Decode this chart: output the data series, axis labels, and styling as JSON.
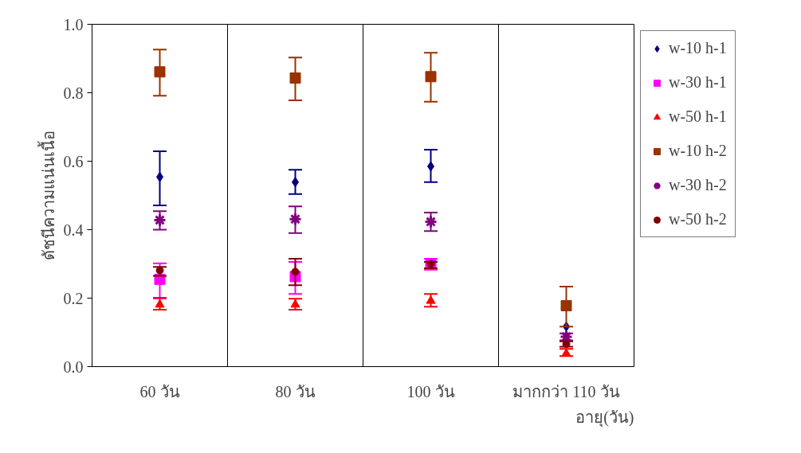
{
  "chart_data": {
    "type": "scatter",
    "ylabel": "ดัชนีความแน่นเนื้อ",
    "xlabel": "อายุ(วัน)",
    "categories": [
      "60 วัน",
      "80 วัน",
      "100 วัน",
      "มากกว่า 110 วัน"
    ],
    "ylim": [
      0,
      1
    ],
    "yticks": [
      {
        "value": 0,
        "label": "0.0"
      },
      {
        "value": 0.2,
        "label": "0.2"
      },
      {
        "value": 0.4,
        "label": "0.4"
      },
      {
        "value": 0.6,
        "label": "0.6"
      },
      {
        "value": 0.8,
        "label": "0.8"
      },
      {
        "value": 1,
        "label": "1.0"
      }
    ],
    "grid": "x",
    "legend": "right",
    "series": [
      {
        "name": "w-10 h-1",
        "color": "#000080",
        "marker": "diamond",
        "values": [
          0.554,
          0.539,
          0.585,
          0.117
        ],
        "errors": [
          [
            0.471,
            0.629
          ],
          [
            0.504,
            0.575
          ],
          [
            0.539,
            0.634
          ],
          null
        ]
      },
      {
        "name": "w-30 h-1",
        "color": "#ff00ff",
        "marker": "square",
        "values": [
          0.255,
          0.263,
          0.298,
          null
        ],
        "errors": [
          [
            0.199,
            0.302
          ],
          [
            0.212,
            0.306
          ],
          [
            0.283,
            0.315
          ],
          null
        ]
      },
      {
        "name": "w-50 h-1",
        "color": "#ff0000",
        "marker": "triangle",
        "values": [
          0.181,
          0.181,
          0.192,
          0.038
        ],
        "errors": [
          [
            0.166,
            0.201
          ],
          [
            0.166,
            0.198
          ],
          [
            0.175,
            0.212
          ],
          [
            0.031,
            0.052
          ]
        ]
      },
      {
        "name": "w-10 h-2",
        "color": "#993300",
        "marker": "square",
        "values": [
          0.861,
          0.843,
          0.847,
          0.178
        ],
        "errors": [
          [
            0.791,
            0.926
          ],
          [
            0.778,
            0.903
          ],
          [
            0.774,
            0.917
          ],
          [
            0.117,
            0.234
          ]
        ]
      },
      {
        "name": "w-30 h-2",
        "color": "#800080",
        "marker": "cross",
        "values": [
          0.428,
          0.431,
          0.423,
          0.087
        ],
        "errors": [
          [
            0.4,
            0.454
          ],
          [
            0.39,
            0.468
          ],
          [
            0.396,
            0.45
          ],
          [
            0.077,
            0.097
          ]
        ]
      },
      {
        "name": "w-50 h-2",
        "color": "#800000",
        "marker": "circle",
        "values": [
          0.281,
          0.277,
          0.3,
          0.066
        ],
        "errors": [
          [
            0.265,
            0.291
          ],
          [
            0.238,
            0.315
          ],
          [
            0.287,
            0.306
          ],
          [
            0.058,
            0.074
          ]
        ]
      }
    ]
  }
}
